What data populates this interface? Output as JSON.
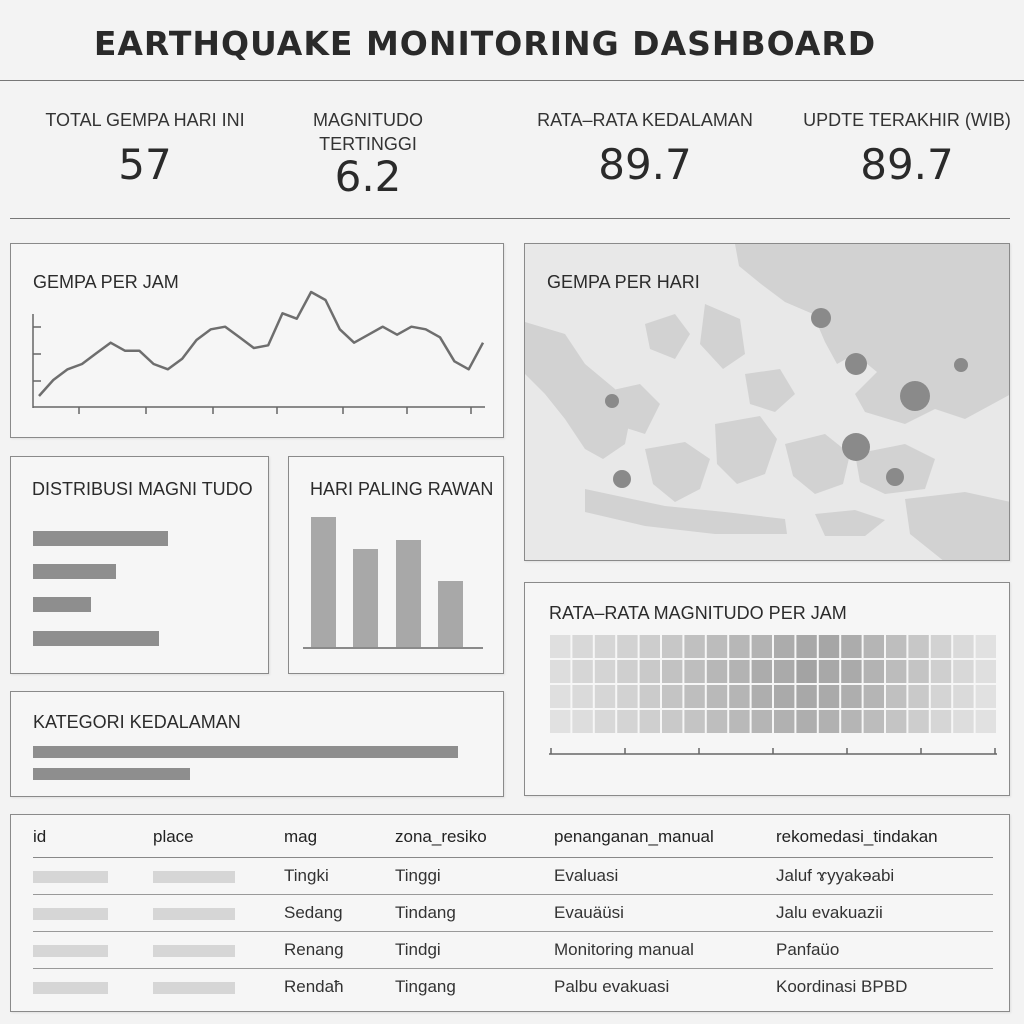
{
  "header": {
    "title": "EARTHQUAKE MONITORING DASHBOARD"
  },
  "kpis": [
    {
      "label": "TOTAL GEMPA HARI INI",
      "value": "57"
    },
    {
      "label": "MAGNITUDO TERTINGGI",
      "value": "6.2"
    },
    {
      "label": "RATA–RATA KEDALAMAN",
      "value": "89.7"
    },
    {
      "label": "UPDTE TERAKHIR (WIB)",
      "value": "89.7"
    }
  ],
  "panels": {
    "hourly": {
      "title": "GEMPA PER JAM"
    },
    "daily_map": {
      "title": "GEMPA PER HARI"
    },
    "magnitude_dist": {
      "title": "DISTRIBUSI MAGNI TUDO"
    },
    "worst_day": {
      "title": "HARI PALING RAWAN"
    },
    "avg_mag_hour": {
      "title": "RATA–RATA MAGNITUDO PER JAM"
    },
    "depth_category": {
      "title": "KATEGORI KEDALAMAN"
    }
  },
  "colors": {
    "line": "#6e6e6e",
    "bar": "#8e8e8e",
    "map_land": "#d4d4d4",
    "map_sea": "#e6e6e6",
    "bubble": "#8a8a8a"
  },
  "chart_data": [
    {
      "type": "line",
      "title": "GEMPA PER JAM",
      "values": [
        3,
        9,
        13,
        15,
        19,
        23,
        20,
        20,
        15,
        13,
        17,
        24,
        28,
        29,
        25,
        21,
        22,
        34,
        32,
        42,
        39,
        28,
        23,
        26,
        29,
        26,
        29,
        28,
        25,
        16,
        13,
        23
      ]
    },
    {
      "type": "bar",
      "title": "DISTRIBUSI MAGNI TUDO",
      "orientation": "horizontal",
      "values": [
        135,
        83,
        58,
        126
      ]
    },
    {
      "type": "bar",
      "title": "HARI PALING RAWAN",
      "values": [
        130,
        98,
        107,
        66
      ]
    },
    {
      "type": "heatmap",
      "title": "RATA–RATA MAGNITUDO PER JAM",
      "values": [
        [
          0.12,
          0.18,
          0.2,
          0.24,
          0.28,
          0.34,
          0.4,
          0.44,
          0.48,
          0.52,
          0.58,
          0.62,
          0.64,
          0.58,
          0.5,
          0.42,
          0.34,
          0.24,
          0.16,
          0.1
        ],
        [
          0.14,
          0.2,
          0.22,
          0.26,
          0.32,
          0.38,
          0.42,
          0.48,
          0.52,
          0.58,
          0.6,
          0.66,
          0.62,
          0.6,
          0.52,
          0.44,
          0.36,
          0.26,
          0.18,
          0.12
        ],
        [
          0.12,
          0.16,
          0.2,
          0.24,
          0.3,
          0.36,
          0.42,
          0.46,
          0.5,
          0.56,
          0.6,
          0.62,
          0.6,
          0.56,
          0.5,
          0.4,
          0.32,
          0.22,
          0.16,
          0.1
        ],
        [
          0.1,
          0.14,
          0.18,
          0.22,
          0.26,
          0.32,
          0.36,
          0.42,
          0.46,
          0.5,
          0.54,
          0.56,
          0.54,
          0.5,
          0.44,
          0.36,
          0.28,
          0.2,
          0.14,
          0.1
        ]
      ]
    },
    {
      "type": "bar",
      "title": "KATEGORI KEDALAMAN",
      "orientation": "horizontal",
      "values": [
        425,
        157
      ]
    }
  ],
  "table": {
    "columns": [
      "id",
      "place",
      "mag",
      "zona_resiko",
      "penanganan_manual",
      "rekomedasi_tindakan"
    ],
    "rows": [
      {
        "mag": "Tingki",
        "zona_resiko": "Tinggi",
        "penanganan_manual": "Evaluasi",
        "rekomendasi_tindakan": "Jaluf ɤyyakəabi"
      },
      {
        "mag": "Sedang",
        "zona_resiko": "Tindang",
        "penanganan_manual": "Evauäüsi",
        "rekomendasi_tindakan": "Jalu evakuazii"
      },
      {
        "mag": "Renang",
        "zona_resiko": "Tindgi",
        "penanganan_manual": "Monitoring manual",
        "rekomendasi_tindakan": "Panfaüo"
      },
      {
        "mag": "Rendaħ",
        "zona_resiko": "Tingang",
        "penanganan_manual": "Palbu evakuasi",
        "rekomendasi_tindakan": "Koordinasi BPBD"
      }
    ]
  }
}
